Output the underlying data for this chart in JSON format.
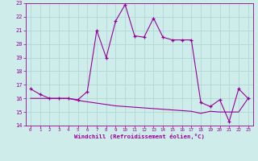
{
  "xlabel": "Windchill (Refroidissement éolien,°C)",
  "background_color": "#ceecea",
  "grid_color": "#b0d8d5",
  "line_color": "#990099",
  "xlim": [
    -0.5,
    23.5
  ],
  "ylim": [
    14,
    23
  ],
  "yticks": [
    14,
    15,
    16,
    17,
    18,
    19,
    20,
    21,
    22,
    23
  ],
  "xticks": [
    0,
    1,
    2,
    3,
    4,
    5,
    6,
    7,
    8,
    9,
    10,
    11,
    12,
    13,
    14,
    15,
    16,
    17,
    18,
    19,
    20,
    21,
    22,
    23
  ],
  "line1_x": [
    0,
    1,
    2,
    3,
    4,
    5,
    6,
    7,
    8,
    9,
    10,
    11,
    12,
    13,
    14,
    15,
    16,
    17,
    18,
    19,
    20,
    21,
    22,
    23
  ],
  "line1_y": [
    16.7,
    16.3,
    16.0,
    16.0,
    16.0,
    15.9,
    16.5,
    21.0,
    19.0,
    21.7,
    22.9,
    20.6,
    20.5,
    21.9,
    20.5,
    20.3,
    20.3,
    20.3,
    15.7,
    15.4,
    15.9,
    14.3,
    16.7,
    16.0
  ],
  "line2_x": [
    0,
    1,
    2,
    3,
    4,
    5,
    6,
    7,
    8,
    9,
    10,
    11,
    12,
    13,
    14,
    15,
    16,
    17,
    18,
    19,
    20,
    21,
    22,
    23
  ],
  "line2_y": [
    16.0,
    16.0,
    16.0,
    16.0,
    16.0,
    15.85,
    15.75,
    15.65,
    15.55,
    15.45,
    15.4,
    15.35,
    15.3,
    15.25,
    15.2,
    15.15,
    15.1,
    15.05,
    14.9,
    15.05,
    15.0,
    15.0,
    15.0,
    16.0
  ]
}
